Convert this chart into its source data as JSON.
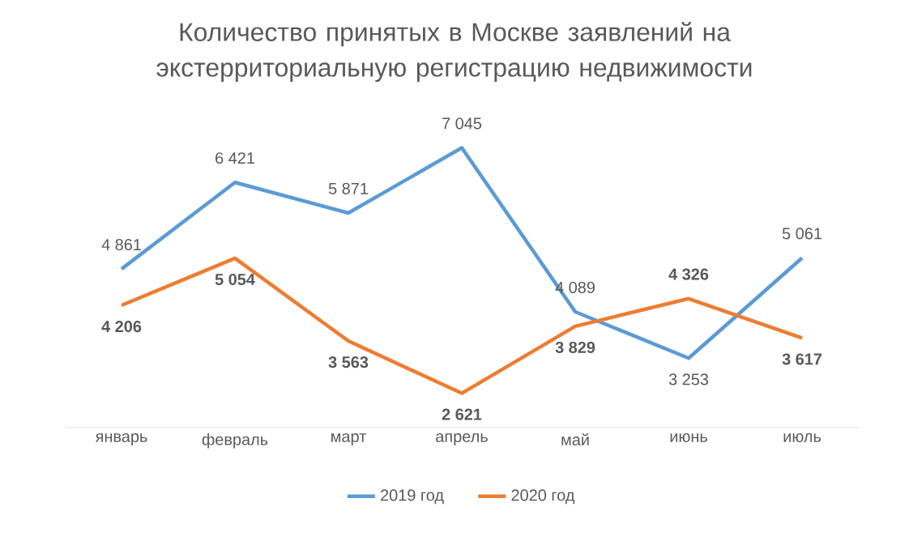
{
  "chart_data": {
    "type": "line",
    "title": "Количество принятых в Москве заявлений на экстерриториальную регистрацию недвижимости",
    "categories": [
      "январь",
      "февраль",
      "март",
      "апрель",
      "май",
      "июнь",
      "июль"
    ],
    "series": [
      {
        "name": "2019 год",
        "color": "#5b9bd5",
        "values": [
          4861,
          6421,
          5871,
          7045,
          4089,
          3253,
          5061
        ],
        "value_labels": [
          "4 861",
          "6 421",
          "5 871",
          "7 045",
          "4 089",
          "3 253",
          "5 061"
        ]
      },
      {
        "name": "2020 год",
        "color": "#ed7d31",
        "values": [
          4206,
          5054,
          3563,
          2621,
          3829,
          4326,
          3617
        ],
        "value_labels": [
          "4 206",
          "5 054",
          "3 563",
          "2 621",
          "3 829",
          "4 326",
          "3 617"
        ]
      }
    ],
    "tick_labels": "x",
    "legend": "bottom",
    "grid": false,
    "marker": "none",
    "line_style": "solid"
  }
}
